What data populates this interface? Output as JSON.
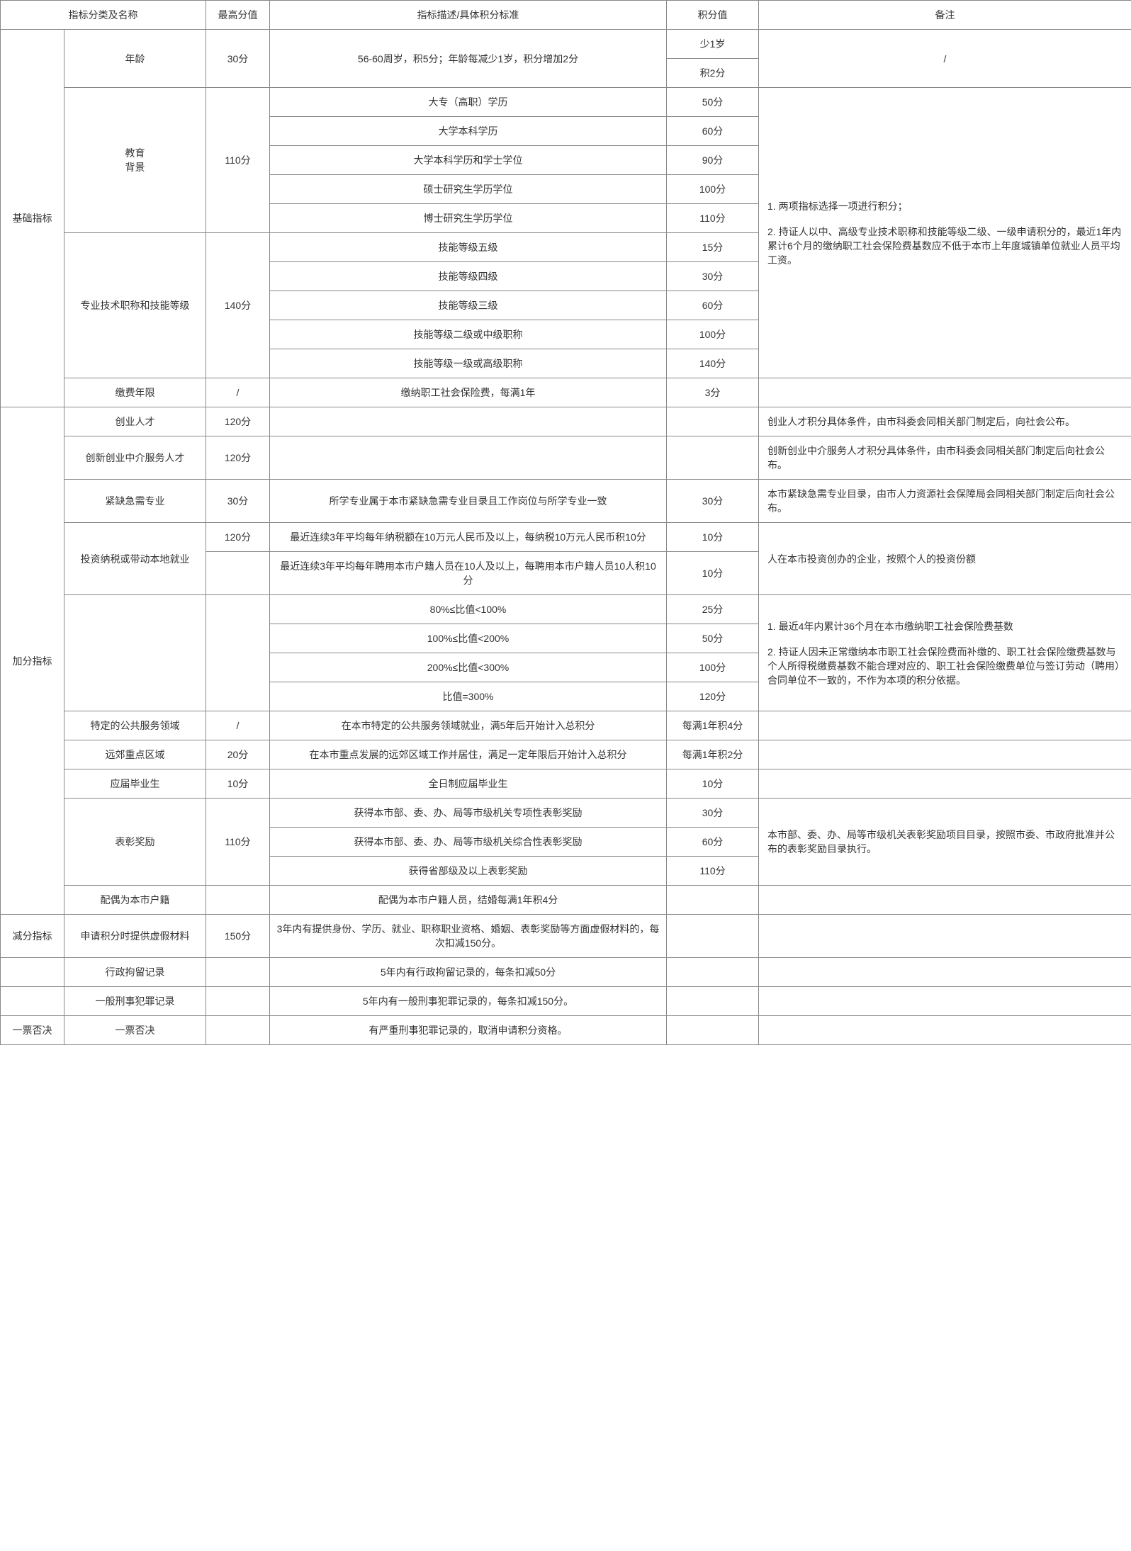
{
  "headers": {
    "cat_name": "指标分类及名称",
    "max": "最高分值",
    "desc": "指标描述/具体积分标准",
    "val": "积分值",
    "note": "备注"
  },
  "basic": {
    "cat": "基础指标",
    "age": {
      "name": "年龄",
      "max": "30分",
      "desc": "56-60周岁，积5分；年龄每减少1岁，积分增加2分",
      "v1": "少1岁",
      "v2": "积2分",
      "note": "/"
    },
    "edu": {
      "name": "教育\n背景",
      "max": "110分",
      "r1d": "大专（高职）学历",
      "r1v": "50分",
      "r2d": "大学本科学历",
      "r2v": "60分",
      "r3d": "大学本科学历和学士学位",
      "r3v": "90分",
      "r4d": "硕士研究生学历学位",
      "r4v": "100分",
      "r5d": "博士研究生学历学位",
      "r5v": "110分"
    },
    "skill": {
      "name": "专业技术职称和技能等级",
      "max": "140分",
      "r1d": "技能等级五级",
      "r1v": "15分",
      "r2d": "技能等级四级",
      "r2v": "30分",
      "r3d": "技能等级三级",
      "r3v": "60分",
      "r4d": "技能等级二级或中级职称",
      "r4v": "100分",
      "r5d": "技能等级一级或高级职称",
      "r5v": "140分"
    },
    "edu_skill_note": "1. 两项指标选择一项进行积分；\n\n2. 持证人以中、高级专业技术职称和技能等级二级、一级申请积分的，最近1年内累计6个月的缴纳职工社会保险费基数应不低于本市上年度城镇单位就业人员平均工资。",
    "pay": {
      "name": "缴费年限",
      "max": "/",
      "desc": "缴纳职工社会保险费，每满1年",
      "val": "3分",
      "note": ""
    }
  },
  "bonus": {
    "cat": "加分指标",
    "r1": {
      "name": "创业人才",
      "max": "120分",
      "desc": "",
      "val": "",
      "note": "创业人才积分具体条件，由市科委会同相关部门制定后，向社会公布。"
    },
    "r2": {
      "name": "创新创业中介服务人才",
      "max": "120分",
      "desc": "",
      "val": "",
      "note": "创新创业中介服务人才积分具体条件，由市科委会同相关部门制定后向社会公布。"
    },
    "r3": {
      "name": "紧缺急需专业",
      "max": "30分",
      "desc": "所学专业属于本市紧缺急需专业目录且工作岗位与所学专业一致",
      "val": "30分",
      "note": "本市紧缺急需专业目录，由市人力资源社会保障局会同相关部门制定后向社会公布。"
    },
    "invest": {
      "name": "投资纳税或带动本地就业",
      "max": "120分",
      "r1d": "最近连续3年平均每年纳税额在10万元人民币及以上，每纳税10万元人民币积10分",
      "r1v": "10分",
      "r2d": "最近连续3年平均每年聘用本市户籍人员在10人及以上，每聘用本市户籍人员10人积10分",
      "r2v": "10分",
      "note": "人在本市投资创办的企业，按照个人的投资份额"
    },
    "ratio": {
      "r1d": "80%≤比值<100%",
      "r1v": "25分",
      "r2d": "100%≤比值<200%",
      "r2v": "50分",
      "r3d": "200%≤比值<300%",
      "r3v": "100分",
      "r4d": "比值=300%",
      "r4v": "120分",
      "note": "1. 最近4年内累计36个月在本市缴纳职工社会保险费基数\n\n2. 持证人因未正常缴纳本市职工社会保险费而补缴的、职工社会保险缴费基数与个人所得税缴费基数不能合理对应的、职工社会保险缴费单位与签订劳动（聘用）合同单位不一致的，不作为本项的积分依据。"
    },
    "public": {
      "name": "特定的公共服务领域",
      "max": "/",
      "desc": "在本市特定的公共服务领域就业，满5年后开始计入总积分",
      "val": "每满1年积4分",
      "note": ""
    },
    "remote": {
      "name": "远郊重点区域",
      "max": "20分",
      "desc": "在本市重点发展的远郊区域工作并居住，满足一定年限后开始计入总积分",
      "val": "每满1年积2分",
      "note": ""
    },
    "grad": {
      "name": "应届毕业生",
      "max": "10分",
      "desc": "全日制应届毕业生",
      "val": "10分",
      "note": ""
    },
    "award": {
      "name": "表彰奖励",
      "max": "110分",
      "r1d": "获得本市部、委、办、局等市级机关专项性表彰奖励",
      "r1v": "30分",
      "r2d": "获得本市部、委、办、局等市级机关综合性表彰奖励",
      "r2v": "60分",
      "r3d": "获得省部级及以上表彰奖励",
      "r3v": "110分",
      "note": "本市部、委、办、局等市级机关表彰奖励项目目录，按照市委、市政府批准并公布的表彰奖励目录执行。"
    },
    "spouse": {
      "name": "配偶为本市户籍",
      "max": "",
      "desc": "配偶为本市户籍人员，结婚每满1年积4分",
      "val": "",
      "note": ""
    }
  },
  "deduct": {
    "cat": "减分指标",
    "r1": {
      "name": "申请积分时提供虚假材料",
      "max": "150分",
      "desc": "3年内有提供身份、学历、就业、职称职业资格、婚姻、表彰奖励等方面虚假材料的，每次扣减150分。",
      "val": "",
      "note": ""
    },
    "r2": {
      "name": "行政拘留记录",
      "max": "",
      "desc": "5年内有行政拘留记录的，每条扣减50分",
      "val": "",
      "note": ""
    },
    "r3": {
      "name": "一般刑事犯罪记录",
      "max": "",
      "desc": "5年内有一般刑事犯罪记录的，每条扣减150分。",
      "val": "",
      "note": ""
    }
  },
  "veto": {
    "cat": "一票否决",
    "r1": {
      "name": "一票否决",
      "max": "",
      "desc": "有严重刑事犯罪记录的，取消申请积分资格。",
      "val": "",
      "note": ""
    }
  }
}
